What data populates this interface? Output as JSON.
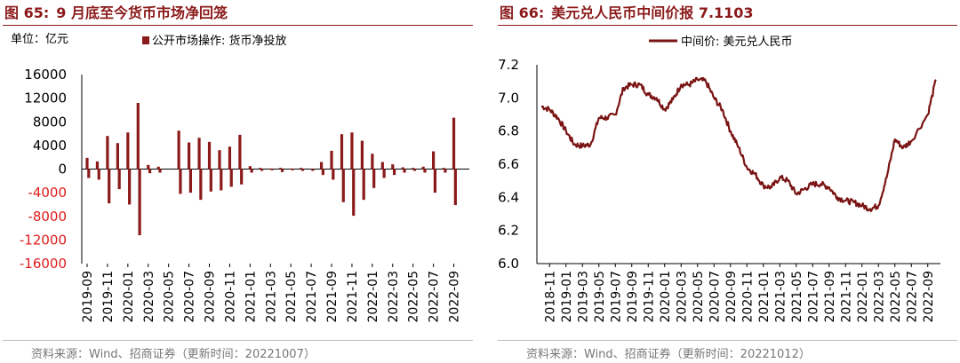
{
  "left": {
    "figure_no": "图 65:",
    "figure_title": "9 月底至今货币市场净回笼",
    "unit_label": "单位：亿元",
    "source": "资料来源：Wind、招商证券（更新时间：20221007）"
  },
  "right": {
    "figure_no": "图 66:",
    "figure_title": "美元兑人民币中间价报 7.1103",
    "source": "资料来源：Wind、招商证券（更新时间：20221012）"
  },
  "colors": {
    "bar": "#8b1a1a",
    "line": "#7a1414",
    "title": "#8b1a1a"
  },
  "chart_data": [
    {
      "type": "bar",
      "title": "9 月底至今货币市场净回笼",
      "xlabel": "",
      "ylabel": "",
      "ylim": [
        -16000,
        16000
      ],
      "y_ticks": [
        16000,
        12000,
        8000,
        4000,
        0,
        -4000,
        -8000,
        -12000,
        -16000
      ],
      "y_ticks_red": [
        -4000,
        -8000,
        -12000,
        -16000
      ],
      "x_ticks": [
        "2019-09",
        "2019-11",
        "2020-01",
        "2020-03",
        "2020-05",
        "2020-07",
        "2020-09",
        "2020-11",
        "2021-01",
        "2021-03",
        "2021-05",
        "2021-07",
        "2021-09",
        "2021-11",
        "2022-01",
        "2022-03",
        "2022-05",
        "2022-07",
        "2022-09"
      ],
      "legend": "top-center",
      "series": [
        {
          "name": "公开市场操作: 货币净投放",
          "x": [
            "2019-09",
            "2019-10",
            "2019-11",
            "2019-12",
            "2020-01",
            "2020-02",
            "2020-03",
            "2020-04",
            "2020-05",
            "2020-06",
            "2020-07",
            "2020-08",
            "2020-09",
            "2020-10",
            "2020-11",
            "2020-12",
            "2021-01",
            "2021-02",
            "2021-03",
            "2021-04",
            "2021-05",
            "2021-06",
            "2021-07",
            "2021-08",
            "2021-09",
            "2021-10",
            "2021-11",
            "2021-12",
            "2022-01",
            "2022-02",
            "2022-03",
            "2022-04",
            "2022-05",
            "2022-06",
            "2022-07",
            "2022-08",
            "2022-09",
            "2022-10"
          ],
          "pos": [
            1900,
            1300,
            5600,
            4400,
            6200,
            11200,
            700,
            400,
            0,
            6500,
            4500,
            5300,
            4600,
            3200,
            3800,
            5800,
            500,
            200,
            100,
            200,
            100,
            200,
            0,
            1200,
            3100,
            5900,
            6200,
            4800,
            2600,
            1200,
            800,
            300,
            200,
            400,
            3000,
            200,
            8700,
            0
          ],
          "neg": [
            -1500,
            -1800,
            -5800,
            -3400,
            -6000,
            -11200,
            -700,
            -600,
            0,
            -4200,
            -4000,
            -5200,
            -3800,
            -3600,
            -3000,
            -2600,
            -600,
            -300,
            -200,
            -500,
            -200,
            -300,
            -300,
            -1000,
            -1800,
            -5600,
            -7900,
            -5200,
            -3200,
            -1500,
            -1000,
            -600,
            -300,
            -600,
            -4000,
            -600,
            -6100,
            0
          ]
        }
      ]
    },
    {
      "type": "line",
      "title": "美元兑人民币中间价报 7.1103",
      "xlabel": "",
      "ylabel": "",
      "ylim": [
        6.0,
        7.2
      ],
      "y_ticks": [
        7.2,
        7.0,
        6.8,
        6.6,
        6.4,
        6.2,
        6.0
      ],
      "x_ticks": [
        "2018-11",
        "2019-01",
        "2019-03",
        "2019-05",
        "2019-07",
        "2019-09",
        "2019-11",
        "2020-01",
        "2020-03",
        "2020-05",
        "2020-07",
        "2020-09",
        "2020-11",
        "2021-01",
        "2021-03",
        "2021-05",
        "2021-07",
        "2021-09",
        "2021-11",
        "2022-01",
        "2022-03",
        "2022-05",
        "2022-07",
        "2022-09"
      ],
      "legend": "top-center",
      "series": [
        {
          "name": "中间价: 美元兑人民币",
          "x": [
            "2018-10",
            "2018-11",
            "2018-12",
            "2019-01",
            "2019-02",
            "2019-03",
            "2019-04",
            "2019-05",
            "2019-06",
            "2019-07",
            "2019-08",
            "2019-09",
            "2019-10",
            "2019-11",
            "2019-12",
            "2020-01",
            "2020-02",
            "2020-03",
            "2020-04",
            "2020-05",
            "2020-06",
            "2020-07",
            "2020-08",
            "2020-09",
            "2020-10",
            "2020-11",
            "2020-12",
            "2021-01",
            "2021-02",
            "2021-03",
            "2021-04",
            "2021-05",
            "2021-06",
            "2021-07",
            "2021-08",
            "2021-09",
            "2021-10",
            "2021-11",
            "2021-12",
            "2022-01",
            "2022-02",
            "2022-03",
            "2022-04",
            "2022-05",
            "2022-06",
            "2022-07",
            "2022-09-10",
            "2022-10"
          ],
          "values": [
            6.95,
            6.93,
            6.88,
            6.8,
            6.72,
            6.71,
            6.72,
            6.88,
            6.88,
            6.9,
            7.06,
            7.08,
            7.08,
            7.02,
            7.0,
            6.93,
            6.99,
            7.08,
            7.08,
            7.11,
            7.1,
            7.0,
            6.93,
            6.8,
            6.7,
            6.58,
            6.54,
            6.47,
            6.46,
            6.52,
            6.5,
            6.42,
            6.45,
            6.48,
            6.48,
            6.46,
            6.4,
            6.38,
            6.37,
            6.35,
            6.33,
            6.35,
            6.52,
            6.75,
            6.7,
            6.74,
            6.9,
            7.11
          ]
        }
      ]
    }
  ]
}
